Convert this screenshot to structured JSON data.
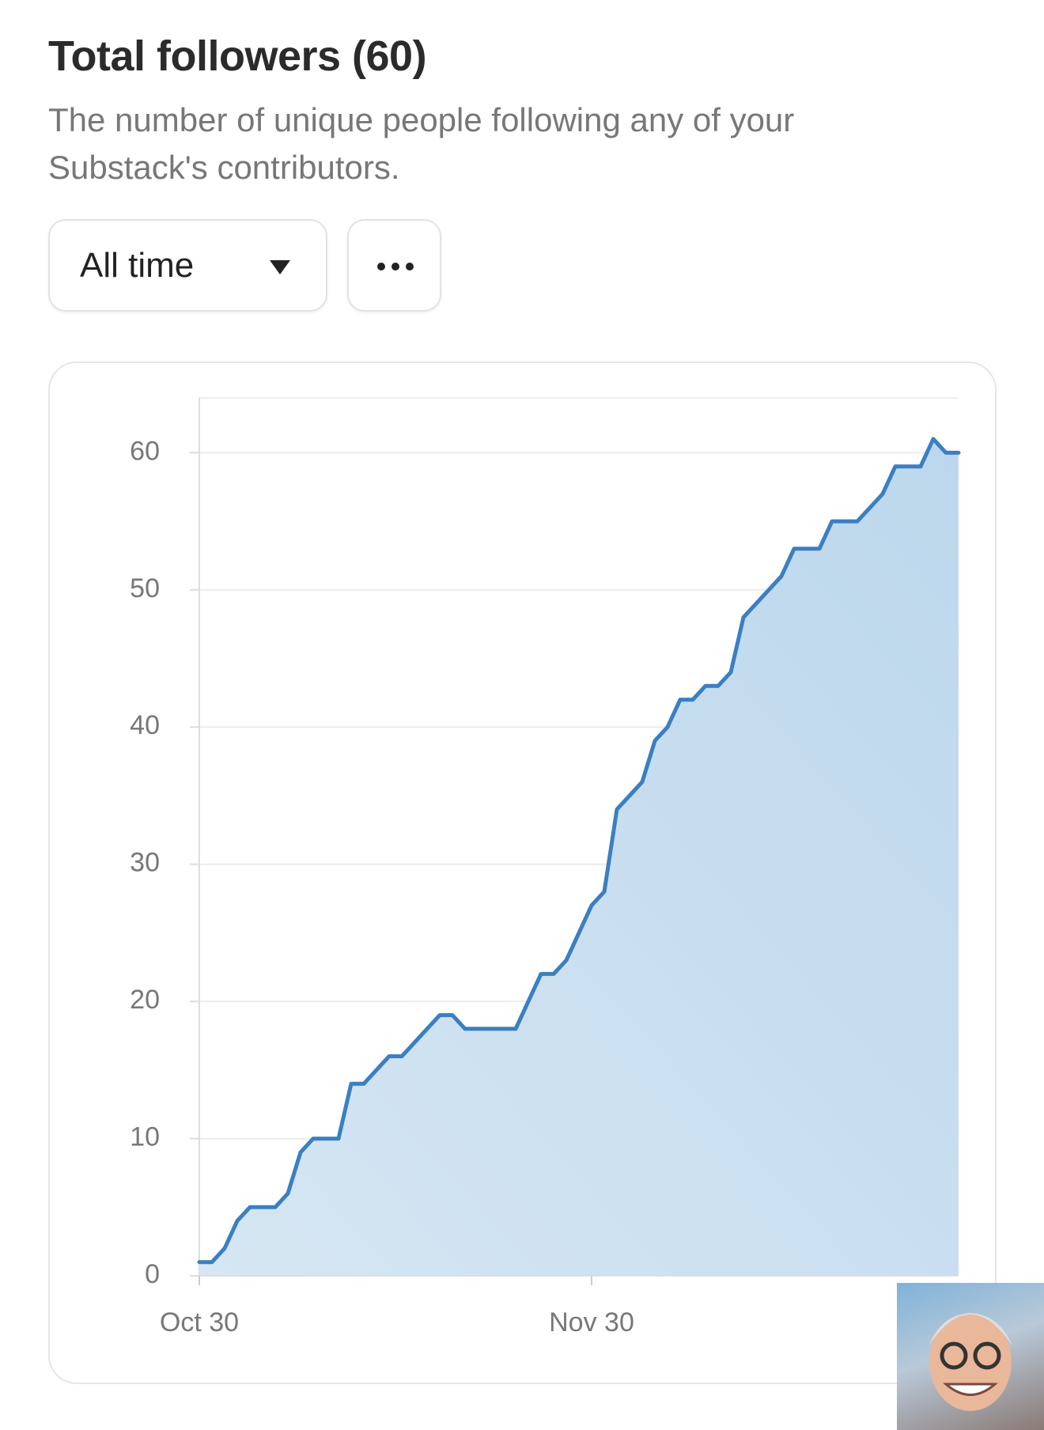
{
  "header": {
    "title": "Total followers (60)",
    "subtitle": "The number of unique people following any of your Substack's contributors.",
    "range_selector": "All time"
  },
  "chart_data": {
    "type": "area",
    "categories": [
      "Oct 30",
      null,
      null,
      null,
      null,
      null,
      null,
      null,
      null,
      null,
      null,
      null,
      null,
      null,
      null,
      null,
      null,
      null,
      null,
      null,
      null,
      null,
      null,
      null,
      null,
      null,
      null,
      null,
      null,
      null,
      null,
      "Nov 30",
      null,
      null,
      null,
      null,
      null,
      null,
      null,
      null,
      null,
      null,
      null,
      null,
      null,
      null,
      null,
      null,
      null,
      null,
      null,
      null,
      null,
      null,
      null,
      null,
      null,
      null,
      null,
      null,
      null
    ],
    "values": [
      1,
      1,
      2,
      4,
      5,
      5,
      5,
      6,
      9,
      10,
      10,
      10,
      14,
      14,
      15,
      16,
      16,
      17,
      18,
      19,
      19,
      18,
      18,
      18,
      18,
      18,
      20,
      22,
      22,
      23,
      25,
      27,
      28,
      34,
      35,
      36,
      39,
      40,
      42,
      42,
      43,
      43,
      44,
      48,
      49,
      50,
      51,
      53,
      53,
      53,
      55,
      55,
      55,
      56,
      57,
      59,
      59,
      59,
      61,
      60,
      60
    ],
    "color": "#3a7fc1",
    "ylim": [
      0,
      64
    ],
    "yticks": [
      0,
      10,
      20,
      30,
      40,
      50,
      60
    ],
    "grid": true
  }
}
